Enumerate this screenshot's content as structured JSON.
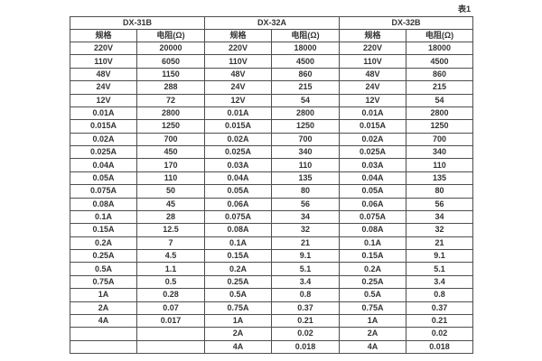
{
  "page": {
    "caption": "表1"
  },
  "table": {
    "border_color": "#4d4d4d",
    "text_color": "#333333",
    "groups": [
      {
        "name": "DX-31B",
        "spec_header": "规格",
        "res_header": "电阻(Ω)"
      },
      {
        "name": "DX-32A",
        "spec_header": "规格",
        "res_header": "电阻(Ω)"
      },
      {
        "name": "DX-32B",
        "spec_header": "规格",
        "res_header": "电阻(Ω)"
      }
    ],
    "rows": [
      [
        "220V",
        "20000",
        "220V",
        "18000",
        "220V",
        "18000"
      ],
      [
        "110V",
        "6050",
        "110V",
        "4500",
        "110V",
        "4500"
      ],
      [
        "48V",
        "1150",
        "48V",
        "860",
        "48V",
        "860"
      ],
      [
        "24V",
        "288",
        "24V",
        "215",
        "24V",
        "215"
      ],
      [
        "12V",
        "72",
        "12V",
        "54",
        "12V",
        "54"
      ],
      [
        "0.01A",
        "2800",
        "0.01A",
        "2800",
        "0.01A",
        "2800"
      ],
      [
        "0.015A",
        "1250",
        "0.015A",
        "1250",
        "0.015A",
        "1250"
      ],
      [
        "0.02A",
        "700",
        "0.02A",
        "700",
        "0.02A",
        "700"
      ],
      [
        "0.025A",
        "450",
        "0.025A",
        "340",
        "0.025A",
        "340"
      ],
      [
        "0.04A",
        "170",
        "0.03A",
        "110",
        "0.03A",
        "110"
      ],
      [
        "0.05A",
        "110",
        "0.04A",
        "135",
        "0.04A",
        "135"
      ],
      [
        "0.075A",
        "50",
        "0.05A",
        "80",
        "0.05A",
        "80"
      ],
      [
        "0.08A",
        "45",
        "0.06A",
        "56",
        "0.06A",
        "56"
      ],
      [
        "0.1A",
        "28",
        "0.075A",
        "34",
        "0.075A",
        "34"
      ],
      [
        "0.15A",
        "12.5",
        "0.08A",
        "32",
        "0.08A",
        "32"
      ],
      [
        "0.2A",
        "7",
        "0.1A",
        "21",
        "0.1A",
        "21"
      ],
      [
        "0.25A",
        "4.5",
        "0.15A",
        "9.1",
        "0.15A",
        "9.1"
      ],
      [
        "0.5A",
        "1.1",
        "0.2A",
        "5.1",
        "0.2A",
        "5.1"
      ],
      [
        "0.75A",
        "0.5",
        "0.25A",
        "3.4",
        "0.25A",
        "3.4"
      ],
      [
        "1A",
        "0.28",
        "0.5A",
        "0.8",
        "0.5A",
        "0.8"
      ],
      [
        "2A",
        "0.07",
        "0.75A",
        "0.37",
        "0.75A",
        "0.37"
      ],
      [
        "4A",
        "0.017",
        "1A",
        "0.21",
        "1A",
        "0.21"
      ],
      [
        "",
        "",
        "2A",
        "0.02",
        "2A",
        "0.02"
      ],
      [
        "",
        "",
        "4A",
        "0.018",
        "4A",
        "0.018"
      ]
    ]
  }
}
